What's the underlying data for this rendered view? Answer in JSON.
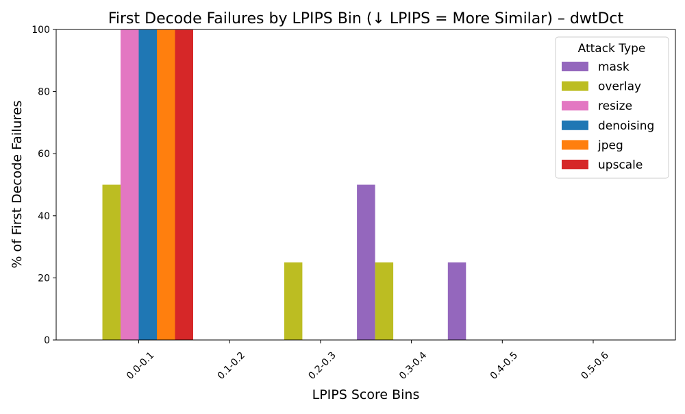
{
  "chart_data": {
    "type": "bar",
    "title": "First Decode Failures by LPIPS Bin (↓ LPIPS = More Similar) – dwtDct",
    "xlabel": "LPIPS Score Bins",
    "ylabel": "% of First Decode Failures",
    "categories": [
      "0.0-0.1",
      "0.1-0.2",
      "0.2-0.3",
      "0.3-0.4",
      "0.4-0.5",
      "0.5-0.6"
    ],
    "ylim": [
      0,
      100
    ],
    "yticks": [
      0,
      20,
      40,
      60,
      80,
      100
    ],
    "grid": false,
    "legend": {
      "title": "Attack Type",
      "placement": "top-right"
    },
    "series": [
      {
        "name": "mask",
        "color": "#9467bd",
        "values": [
          0,
          0,
          0,
          50,
          25,
          0
        ]
      },
      {
        "name": "overlay",
        "color": "#bcbd22",
        "values": [
          50,
          0,
          25,
          25,
          0,
          0
        ]
      },
      {
        "name": "resize",
        "color": "#e377c2",
        "values": [
          100,
          0,
          0,
          0,
          0,
          0
        ]
      },
      {
        "name": "denoising",
        "color": "#1f77b4",
        "values": [
          100,
          0,
          0,
          0,
          0,
          0
        ]
      },
      {
        "name": "jpeg",
        "color": "#ff7f0e",
        "values": [
          100,
          0,
          0,
          0,
          0,
          0
        ]
      },
      {
        "name": "upscale",
        "color": "#d62728",
        "values": [
          100,
          0,
          0,
          0,
          0,
          0
        ]
      }
    ]
  }
}
